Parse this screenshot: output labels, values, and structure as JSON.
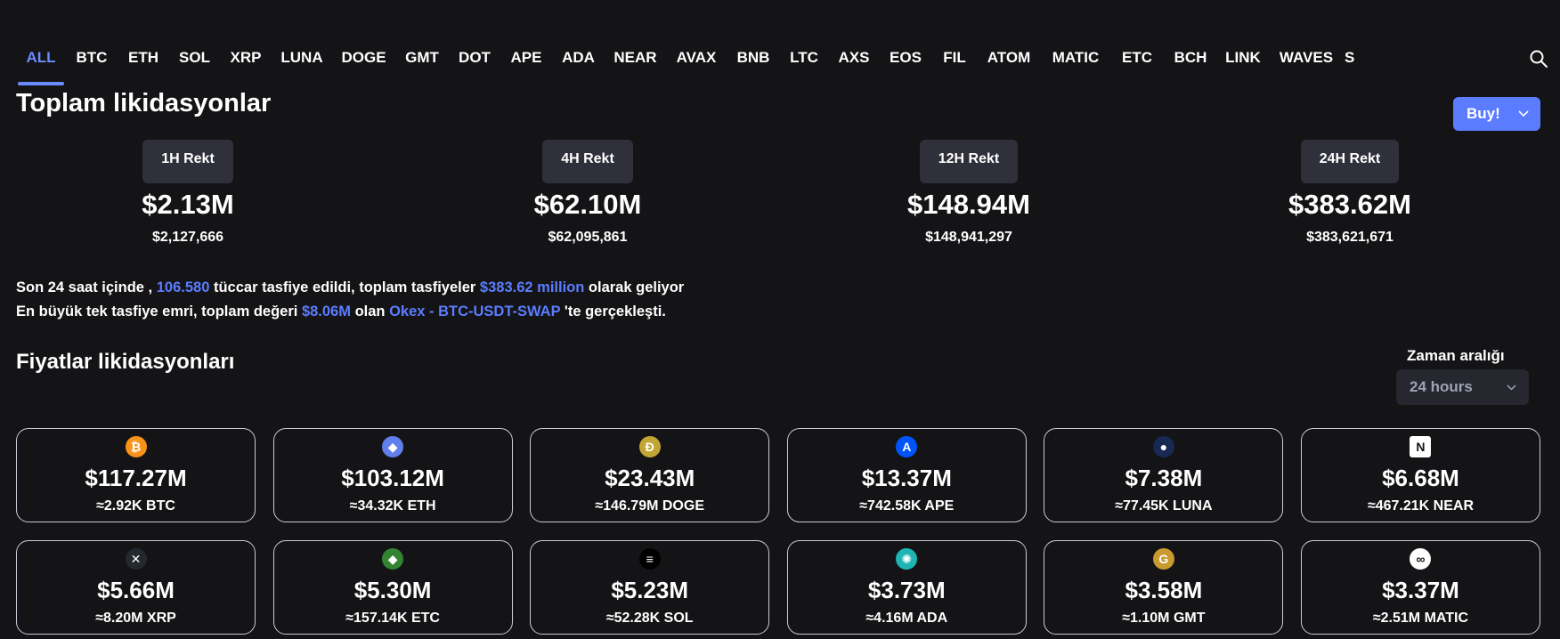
{
  "tabs": [
    "ALL",
    "BTC",
    "ETH",
    "SOL",
    "XRP",
    "LUNA",
    "DOGE",
    "GMT",
    "DOT",
    "APE",
    "ADA",
    "NEAR",
    "AVAX",
    "BNB",
    "LTC",
    "AXS",
    "EOS",
    "FIL",
    "ATOM",
    "MATIC",
    "ETC",
    "BCH",
    "LINK",
    "WAVES",
    "S"
  ],
  "active_tab": "ALL",
  "header": {
    "title": "Toplam likidasyonlar",
    "buy_label": "Buy!"
  },
  "rekt": [
    {
      "label": "1H Rekt",
      "big": "$2.13M",
      "exact": "$2,127,666"
    },
    {
      "label": "4H Rekt",
      "big": "$62.10M",
      "exact": "$62,095,861"
    },
    {
      "label": "12H Rekt",
      "big": "$148.94M",
      "exact": "$148,941,297"
    },
    {
      "label": "24H Rekt",
      "big": "$383.62M",
      "exact": "$383,621,671"
    }
  ],
  "summary": {
    "line1_a": "Son 24 saat içinde , ",
    "traders": "106.580",
    "line1_b": " tüccar tasfiye edildi, toplam tasfiyeler ",
    "total": "$383.62 million",
    "line1_c": " olarak geliyor",
    "line2_a": "En büyük tek tasfiye emri, toplam değeri ",
    "largest": "$8.06M",
    "line2_b": " olan ",
    "exchange": "Okex - BTC-USDT-SWAP",
    "line2_c": " 'te gerçekleşti."
  },
  "prices": {
    "title": "Fiyatlar likidasyonları",
    "range_label": "Zaman aralığı",
    "range_value": "24 hours"
  },
  "cards": [
    {
      "coin": "btc",
      "icon": "bitcoin-icon",
      "color": "#f7931a",
      "glyph": "₿",
      "amount": "$117.27M",
      "qty": "≈2.92K BTC"
    },
    {
      "coin": "eth",
      "icon": "ethereum-icon",
      "color": "#627eea",
      "glyph": "◆",
      "amount": "$103.12M",
      "qty": "≈34.32K ETH"
    },
    {
      "coin": "doge",
      "icon": "dogecoin-icon",
      "color": "#c2a633",
      "glyph": "Đ",
      "amount": "$23.43M",
      "qty": "≈146.79M DOGE"
    },
    {
      "coin": "ape",
      "icon": "apecoin-icon",
      "color": "#0054f9",
      "glyph": "A",
      "amount": "$13.37M",
      "qty": "≈742.58K APE"
    },
    {
      "coin": "luna",
      "icon": "luna-icon",
      "color": "#172852",
      "glyph": "●",
      "amount": "$7.38M",
      "qty": "≈77.45K LUNA"
    },
    {
      "coin": "near",
      "icon": "near-icon",
      "color": "#ffffff",
      "glyph": "N",
      "amount": "$6.68M",
      "qty": "≈467.21K NEAR"
    },
    {
      "coin": "xrp",
      "icon": "xrp-icon",
      "color": "#23292f",
      "glyph": "✕",
      "amount": "$5.66M",
      "qty": "≈8.20M XRP"
    },
    {
      "coin": "etc",
      "icon": "ethereum-classic-icon",
      "color": "#328332",
      "glyph": "◆",
      "amount": "$5.30M",
      "qty": "≈157.14K ETC"
    },
    {
      "coin": "sol",
      "icon": "solana-icon",
      "color": "#000000",
      "glyph": "≡",
      "amount": "$5.23M",
      "qty": "≈52.28K SOL"
    },
    {
      "coin": "ada",
      "icon": "cardano-icon",
      "color": "#1fb5b5",
      "glyph": "✺",
      "amount": "$3.73M",
      "qty": "≈4.16M ADA"
    },
    {
      "coin": "gmt",
      "icon": "gmt-icon",
      "color": "#c99a2e",
      "glyph": "G",
      "amount": "$3.58M",
      "qty": "≈1.10M GMT"
    },
    {
      "coin": "matic",
      "icon": "polygon-icon",
      "color": "#ffffff",
      "glyph": "∞",
      "amount": "$3.37M",
      "qty": "≈2.51M MATIC"
    }
  ],
  "colors": {
    "background": "#141416",
    "accent": "#5b7cff",
    "tab_active": "#6b8cff",
    "pill": "#2f303a"
  }
}
